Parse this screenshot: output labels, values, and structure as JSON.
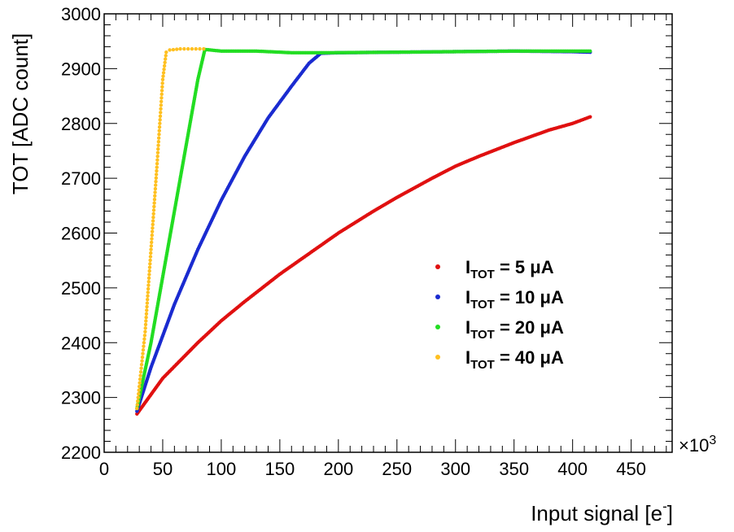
{
  "chart_data": {
    "type": "scatter",
    "xlabel": "Input signal [e",
    "xlabel_sup": "-",
    "xlabel_close": "]",
    "ylabel": "TOT [ADC count]",
    "x_multiplier_label": "×10",
    "x_multiplier_exp": "3",
    "xlim": [
      0,
      485
    ],
    "ylim": [
      2200,
      3000
    ],
    "x_ticks": [
      "0",
      "50",
      "100",
      "150",
      "200",
      "250",
      "300",
      "350",
      "400",
      "450"
    ],
    "y_ticks": [
      "2200",
      "2300",
      "2400",
      "2500",
      "2600",
      "2700",
      "2800",
      "2900",
      "3000"
    ],
    "grid": false,
    "legend_position": "center-right",
    "series": [
      {
        "name": "I",
        "name_sub": "TOT",
        "name_rest": " = 5  μA",
        "color": "#e01010",
        "x": [
          28,
          50,
          80,
          100,
          120,
          150,
          180,
          200,
          230,
          250,
          280,
          300,
          320,
          350,
          380,
          400,
          415
        ],
        "y": [
          2270,
          2335,
          2400,
          2440,
          2475,
          2525,
          2570,
          2600,
          2640,
          2665,
          2700,
          2722,
          2740,
          2765,
          2788,
          2800,
          2812
        ]
      },
      {
        "name": "I",
        "name_sub": "TOT",
        "name_rest": " = 10  μA",
        "color": "#1a2bd0",
        "x": [
          28,
          40,
          60,
          80,
          100,
          120,
          140,
          160,
          175,
          185,
          200,
          250,
          300,
          350,
          400,
          415
        ],
        "y": [
          2275,
          2355,
          2470,
          2570,
          2660,
          2740,
          2810,
          2868,
          2910,
          2928,
          2929,
          2930,
          2931,
          2932,
          2931,
          2930
        ]
      },
      {
        "name": "I",
        "name_sub": "TOT",
        "name_rest": " = 20  μA",
        "color": "#22dd22",
        "x": [
          28,
          40,
          55,
          70,
          80,
          86,
          100,
          130,
          160,
          190,
          250,
          300,
          350,
          400,
          415
        ],
        "y": [
          2280,
          2400,
          2580,
          2760,
          2880,
          2935,
          2932,
          2932,
          2929,
          2929,
          2930,
          2931,
          2932,
          2932,
          2932
        ]
      },
      {
        "name": "I",
        "name_sub": "TOT",
        "name_rest": " = 40  μA",
        "color": "#ffc020",
        "x": [
          28,
          35,
          40,
          45,
          50,
          53,
          56,
          65,
          75,
          85
        ],
        "y": [
          2280,
          2420,
          2570,
          2720,
          2880,
          2930,
          2934,
          2936,
          2936,
          2936
        ]
      }
    ]
  }
}
